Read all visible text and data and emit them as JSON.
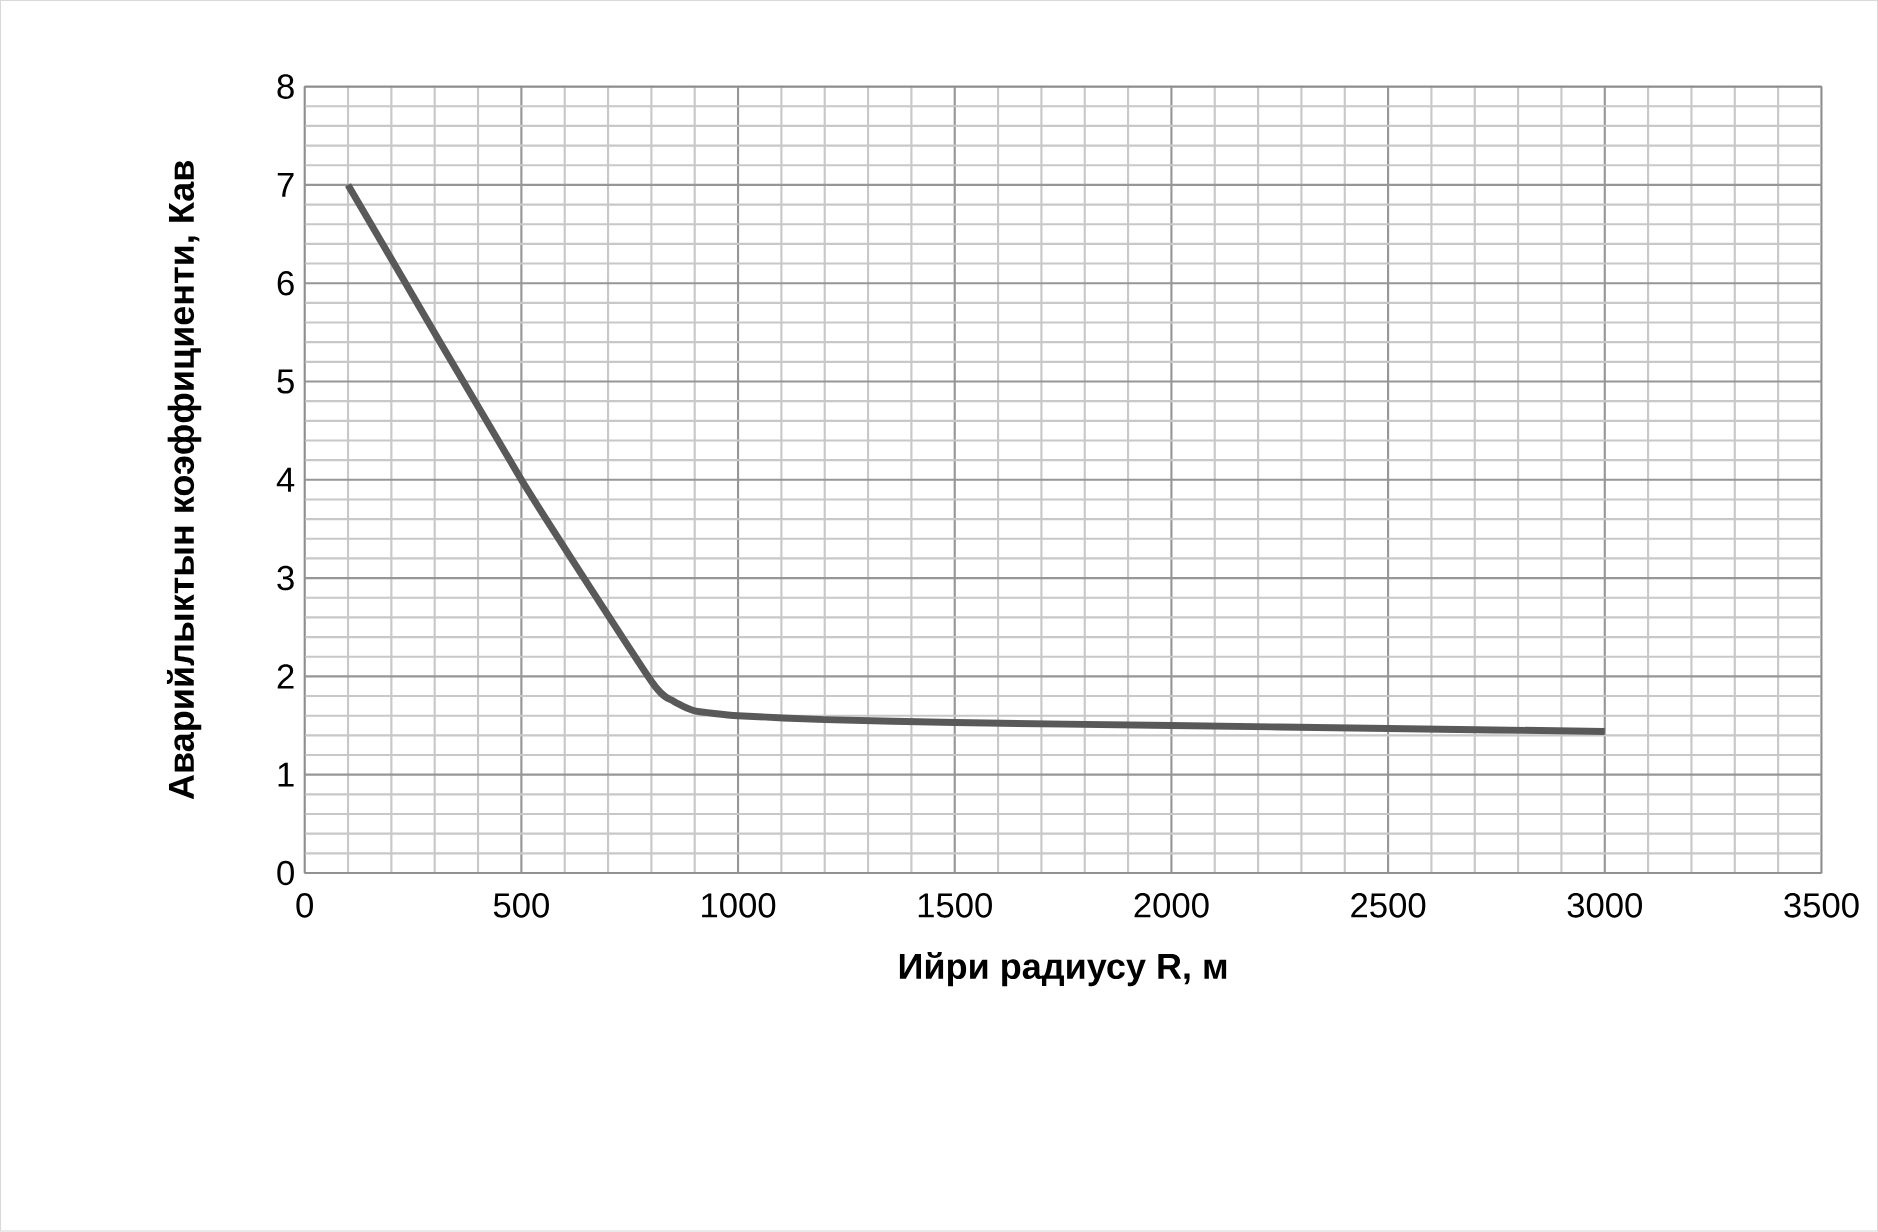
{
  "chart_data": {
    "type": "line",
    "xlabel": "Ийри радиусу R, м",
    "ylabel": "Аварийлыктын коэффициенти, Кав",
    "x": [
      100,
      500,
      800,
      850,
      900,
      1000,
      1200,
      1500,
      2000,
      2500,
      3000
    ],
    "series": [
      {
        "color": "#595959",
        "values": [
          7,
          4,
          1.95,
          1.75,
          1.65,
          1.6,
          1.56,
          1.53,
          1.5,
          1.47,
          1.44
        ]
      }
    ],
    "xlim": [
      0,
      3500
    ],
    "xticks": [
      0,
      500,
      1000,
      1500,
      2000,
      2500,
      3000,
      3500
    ],
    "ylim": [
      0,
      8
    ],
    "yticks": [
      0,
      1,
      2,
      3,
      4,
      5,
      6,
      7,
      8
    ],
    "grid": true,
    "marker": "none",
    "line_style": "solid"
  }
}
